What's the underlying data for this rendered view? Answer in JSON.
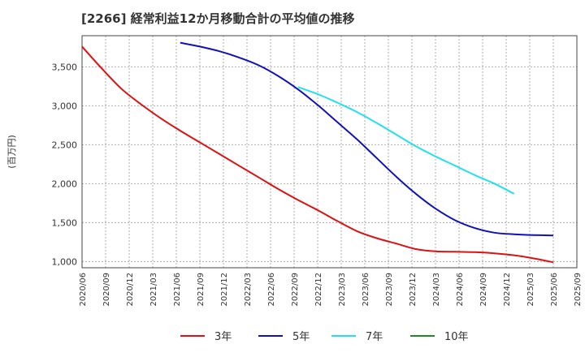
{
  "chart_data": {
    "type": "line",
    "title": "[2266]  経常利益12か月移動合計の平均値の推移",
    "ylabel": "(百万円)",
    "xlabel": "",
    "ylim": [
      920,
      3900
    ],
    "yticks": [
      1000,
      1500,
      2000,
      2500,
      3000,
      3500
    ],
    "ytick_labels": [
      "1,000",
      "1,500",
      "2,000",
      "2,500",
      "3,000",
      "3,500"
    ],
    "xtick_labels": [
      "2020/06",
      "2020/09",
      "2020/12",
      "2021/03",
      "2021/06",
      "2021/09",
      "2021/12",
      "2022/03",
      "2022/06",
      "2022/09",
      "2022/12",
      "2023/03",
      "2023/06",
      "2023/09",
      "2023/12",
      "2024/03",
      "2024/06",
      "2024/09",
      "2024/12",
      "2025/03",
      "2025/06",
      "2025/09"
    ],
    "series": [
      {
        "name": "3年",
        "color": "#dd1111",
        "start_index": 0,
        "values": [
          3760,
          3480,
          3220,
          3020,
          2840,
          2680,
          2530,
          2380,
          2230,
          2080,
          1930,
          1790,
          1660,
          1520,
          1390,
          1300,
          1230,
          1160,
          1130,
          1125,
          1120,
          1105,
          1080,
          1040,
          990
        ]
      },
      {
        "name": "5年",
        "color": "#1111bb",
        "start_index": 5,
        "values": [
          3810,
          3760,
          3700,
          3620,
          3520,
          3380,
          3210,
          3010,
          2790,
          2570,
          2330,
          2090,
          1870,
          1680,
          1530,
          1430,
          1370,
          1350,
          1340,
          1335
        ]
      },
      {
        "name": "7年",
        "color": "#22e0f0",
        "start_index": 11,
        "values": [
          3240,
          3150,
          3040,
          2920,
          2780,
          2630,
          2480,
          2350,
          2230,
          2110,
          2000,
          1870
        ]
      },
      {
        "name": "10年",
        "color": "#228822",
        "start_index": 0,
        "values": []
      }
    ]
  }
}
